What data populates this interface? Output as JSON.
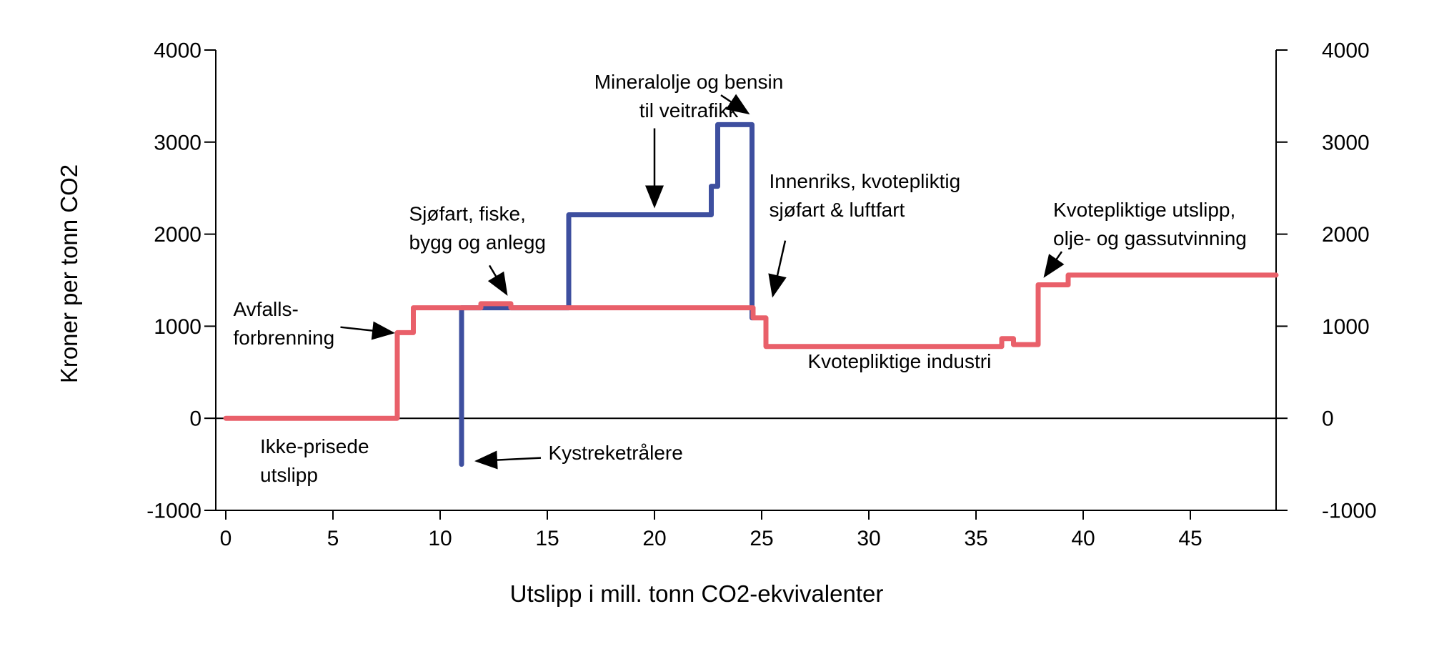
{
  "chart_data": {
    "type": "line",
    "subtype": "step",
    "title": "",
    "xlabel": "Utslipp i mill. tonn CO2-ekvivalenter",
    "ylabel": "Kroner per tonn CO2",
    "xlim": [
      0,
      49
    ],
    "ylim": [
      -1000,
      4000
    ],
    "x_ticks": [
      0,
      5,
      10,
      15,
      20,
      25,
      30,
      35,
      40,
      45
    ],
    "y_ticks": [
      -1000,
      0,
      1000,
      2000,
      3000,
      4000
    ],
    "grid": "zero-line-only",
    "legend": "none",
    "series": [
      {
        "name": "blue-tax-curve",
        "color": "#3e4f9f",
        "points": [
          [
            11,
            -500
          ],
          [
            11,
            1200
          ],
          [
            16,
            1200
          ],
          [
            16,
            2210
          ],
          [
            22.65,
            2210
          ],
          [
            22.65,
            2520
          ],
          [
            22.95,
            2520
          ],
          [
            22.95,
            3190
          ],
          [
            24.55,
            3190
          ],
          [
            24.55,
            1090
          ]
        ]
      },
      {
        "name": "red-price-curve",
        "color": "#e9606a",
        "points": [
          [
            0,
            0
          ],
          [
            8,
            0
          ],
          [
            8,
            930
          ],
          [
            8.75,
            930
          ],
          [
            8.75,
            1200
          ],
          [
            11.9,
            1200
          ],
          [
            11.9,
            1245
          ],
          [
            13.3,
            1245
          ],
          [
            13.3,
            1200
          ],
          [
            24.6,
            1200
          ],
          [
            24.6,
            1090
          ],
          [
            25.2,
            1090
          ],
          [
            25.2,
            780
          ],
          [
            36.2,
            780
          ],
          [
            36.2,
            865
          ],
          [
            36.75,
            865
          ],
          [
            36.75,
            800
          ],
          [
            37.9,
            800
          ],
          [
            37.9,
            1450
          ],
          [
            39.3,
            1450
          ],
          [
            39.3,
            1555
          ],
          [
            49,
            1555
          ]
        ]
      }
    ],
    "annotations": [
      {
        "id": "avfallsforbrenning",
        "lines": [
          "Avfalls-",
          "forbrenning"
        ],
        "x": 0.35,
        "y": 1110,
        "anchor": "start",
        "arrows": [
          {
            "from": [
              5.35,
              990
            ],
            "to": [
              7.9,
              925
            ]
          }
        ]
      },
      {
        "id": "ikke-prisede-utslipp",
        "lines": [
          "Ikke-prisede",
          "utslipp"
        ],
        "x": 1.6,
        "y": -380,
        "anchor": "start",
        "arrows": []
      },
      {
        "id": "sjofart-fiske-bygg-anlegg",
        "lines": [
          "Sjøfart, fiske,",
          "bygg og anlegg"
        ],
        "x": 8.55,
        "y": 2150,
        "anchor": "start",
        "arrows": [
          {
            "from": [
              12.3,
              1660
            ],
            "to": [
              13.15,
              1330
            ]
          }
        ]
      },
      {
        "id": "mineralolje-bensin-veitrafikk",
        "lines": [
          "Mineralolje og bensin",
          "til veitrafikk"
        ],
        "x": 21.6,
        "y": 3580,
        "anchor": "middle",
        "arrows": [
          {
            "from": [
              20,
              3150
            ],
            "to": [
              20,
              2280
            ]
          },
          {
            "from": [
              23.1,
              3510
            ],
            "to": [
              24.45,
              3300
            ]
          }
        ]
      },
      {
        "id": "innenriks-kvotepliktig-sjofart-luftfart",
        "lines": [
          "Innenriks, kvotepliktig",
          "sjøfart & luftfart"
        ],
        "x": 25.35,
        "y": 2500,
        "anchor": "start",
        "arrows": [
          {
            "from": [
              26.1,
              1930
            ],
            "to": [
              25.5,
              1310
            ]
          }
        ]
      },
      {
        "id": "kvotepliktige-utslipp-olje-gass",
        "lines": [
          "Kvotepliktige utslipp,",
          "olje- og gassutvinning"
        ],
        "x": 38.6,
        "y": 2190,
        "anchor": "start",
        "arrows": [
          {
            "from": [
              39.0,
              1810
            ],
            "to": [
              38.15,
              1525
            ]
          }
        ]
      },
      {
        "id": "kvotepliktige-industri",
        "lines": [
          "Kvotepliktige industri"
        ],
        "x": 27.15,
        "y": 545,
        "anchor": "start",
        "arrows": []
      },
      {
        "id": "kystreketralere",
        "lines": [
          "Kystreketrålere"
        ],
        "x": 15.05,
        "y": -450,
        "anchor": "start",
        "arrows": [
          {
            "from": [
              14.7,
              -430
            ],
            "to": [
              11.6,
              -465
            ]
          }
        ]
      }
    ]
  },
  "colors": {
    "line_red": "#e9606a",
    "line_blue": "#3e4f9f",
    "axis": "#000000",
    "text": "#000000",
    "background": "#ffffff"
  }
}
